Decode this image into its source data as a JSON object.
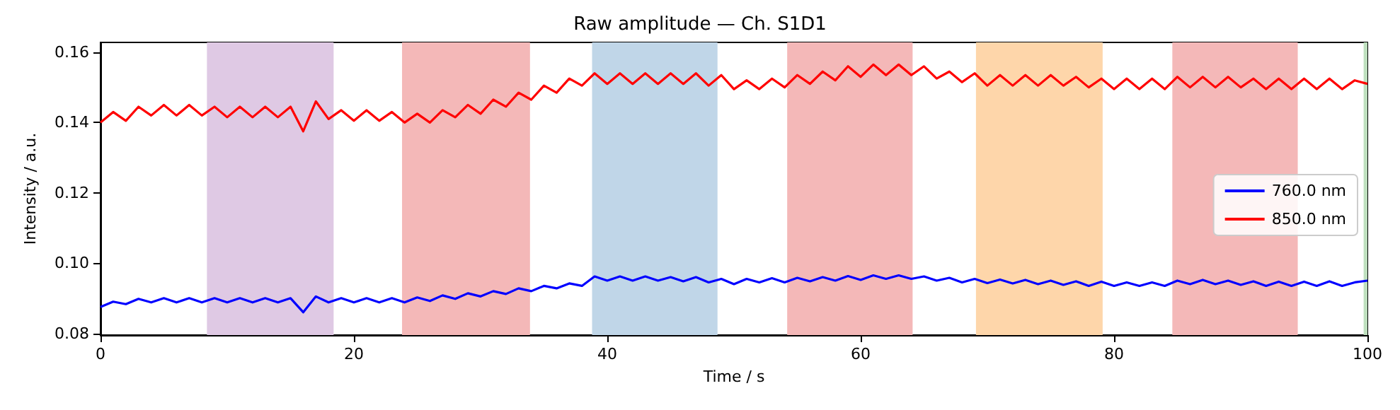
{
  "chart_data": {
    "type": "line",
    "title": "Raw amplitude — Ch. S1D1",
    "xlabel": "Time / s",
    "ylabel": "Intensity / a.u.",
    "x": [
      0,
      1,
      2,
      3,
      4,
      5,
      6,
      7,
      8,
      9,
      10,
      11,
      12,
      13,
      14,
      15,
      16,
      17,
      18,
      19,
      20,
      21,
      22,
      23,
      24,
      25,
      26,
      27,
      28,
      29,
      30,
      31,
      32,
      33,
      34,
      35,
      36,
      37,
      38,
      39,
      40,
      41,
      42,
      43,
      44,
      45,
      46,
      47,
      48,
      49,
      50,
      51,
      52,
      53,
      54,
      55,
      56,
      57,
      58,
      59,
      60,
      61,
      62,
      63,
      64,
      65,
      66,
      67,
      68,
      69,
      70,
      71,
      72,
      73,
      74,
      75,
      76,
      77,
      78,
      79,
      80,
      81,
      82,
      83,
      84,
      85,
      86,
      87,
      88,
      89,
      90,
      91,
      92,
      93,
      94,
      95,
      96,
      97,
      98,
      99,
      100
    ],
    "series": [
      {
        "name": "760.0 nm",
        "color": "#0000ff",
        "values": [
          0.0875,
          0.089,
          0.0883,
          0.0898,
          0.0888,
          0.09,
          0.0888,
          0.09,
          0.0888,
          0.09,
          0.0888,
          0.09,
          0.0888,
          0.09,
          0.0888,
          0.09,
          0.086,
          0.0905,
          0.0888,
          0.09,
          0.0888,
          0.09,
          0.0888,
          0.09,
          0.0888,
          0.0902,
          0.0892,
          0.0908,
          0.0898,
          0.0914,
          0.0905,
          0.092,
          0.0912,
          0.0928,
          0.092,
          0.0935,
          0.0928,
          0.0942,
          0.0935,
          0.0962,
          0.095,
          0.0962,
          0.095,
          0.0962,
          0.095,
          0.096,
          0.0948,
          0.096,
          0.0945,
          0.0955,
          0.094,
          0.0955,
          0.0945,
          0.0957,
          0.0945,
          0.0958,
          0.0948,
          0.096,
          0.095,
          0.0963,
          0.0952,
          0.0965,
          0.0955,
          0.0965,
          0.0955,
          0.0962,
          0.095,
          0.0958,
          0.0945,
          0.0955,
          0.0943,
          0.0953,
          0.0942,
          0.0952,
          0.094,
          0.095,
          0.0938,
          0.0948,
          0.0935,
          0.0947,
          0.0935,
          0.0945,
          0.0935,
          0.0945,
          0.0935,
          0.095,
          0.094,
          0.0952,
          0.094,
          0.095,
          0.0938,
          0.0948,
          0.0935,
          0.0947,
          0.0935,
          0.0947,
          0.0935,
          0.0948,
          0.0935,
          0.0945,
          0.095
        ]
      },
      {
        "name": "850.0 nm",
        "color": "#ff0000",
        "values": [
          0.14,
          0.143,
          0.1405,
          0.1445,
          0.142,
          0.145,
          0.142,
          0.145,
          0.142,
          0.1445,
          0.1415,
          0.1445,
          0.1415,
          0.1445,
          0.1415,
          0.1445,
          0.1375,
          0.146,
          0.141,
          0.1435,
          0.1405,
          0.1435,
          0.1405,
          0.143,
          0.14,
          0.1425,
          0.14,
          0.1435,
          0.1415,
          0.145,
          0.1425,
          0.1465,
          0.1445,
          0.1485,
          0.1465,
          0.1505,
          0.1485,
          0.1525,
          0.1505,
          0.154,
          0.151,
          0.154,
          0.151,
          0.154,
          0.151,
          0.154,
          0.151,
          0.154,
          0.1505,
          0.1535,
          0.1495,
          0.152,
          0.1495,
          0.1525,
          0.15,
          0.1535,
          0.151,
          0.1545,
          0.152,
          0.156,
          0.153,
          0.1565,
          0.1535,
          0.1565,
          0.1535,
          0.156,
          0.1525,
          0.1545,
          0.1515,
          0.154,
          0.1505,
          0.1535,
          0.1505,
          0.1535,
          0.1505,
          0.1535,
          0.1505,
          0.153,
          0.15,
          0.1525,
          0.1495,
          0.1525,
          0.1495,
          0.1525,
          0.1495,
          0.153,
          0.15,
          0.153,
          0.15,
          0.153,
          0.15,
          0.1525,
          0.1495,
          0.1525,
          0.1495,
          0.1525,
          0.1495,
          0.1525,
          0.1495,
          0.152,
          0.151
        ]
      }
    ],
    "xlim": [
      0,
      100
    ],
    "xticks": [
      0,
      20,
      40,
      60,
      80,
      100
    ],
    "ylim": [
      0.0795,
      0.1628
    ],
    "yticks": [
      {
        "value": 0.08,
        "label": "0.08"
      },
      {
        "value": 0.1,
        "label": "0.10"
      },
      {
        "value": 0.12,
        "label": "0.12"
      },
      {
        "value": 0.14,
        "label": "0.14"
      },
      {
        "value": 0.16,
        "label": "0.16"
      }
    ],
    "bands": [
      {
        "axis": "x",
        "from": 8.4,
        "to": 18.4,
        "color": "#dfc9e4"
      },
      {
        "axis": "x",
        "from": 23.8,
        "to": 33.9,
        "color": "#f4b8b8"
      },
      {
        "axis": "x",
        "from": 38.8,
        "to": 48.7,
        "color": "#c0d6e8"
      },
      {
        "axis": "x",
        "from": 54.2,
        "to": 64.1,
        "color": "#f4b8b8"
      },
      {
        "axis": "x",
        "from": 69.1,
        "to": 79.1,
        "color": "#fed6aa"
      },
      {
        "axis": "x",
        "from": 84.6,
        "to": 94.5,
        "color": "#f4b8b8"
      },
      {
        "axis": "x",
        "from": 99.7,
        "to": 100,
        "color": "#bfe0bf"
      }
    ],
    "grid": false,
    "legend": "right",
    "marker": "none",
    "line_style": "solid"
  }
}
